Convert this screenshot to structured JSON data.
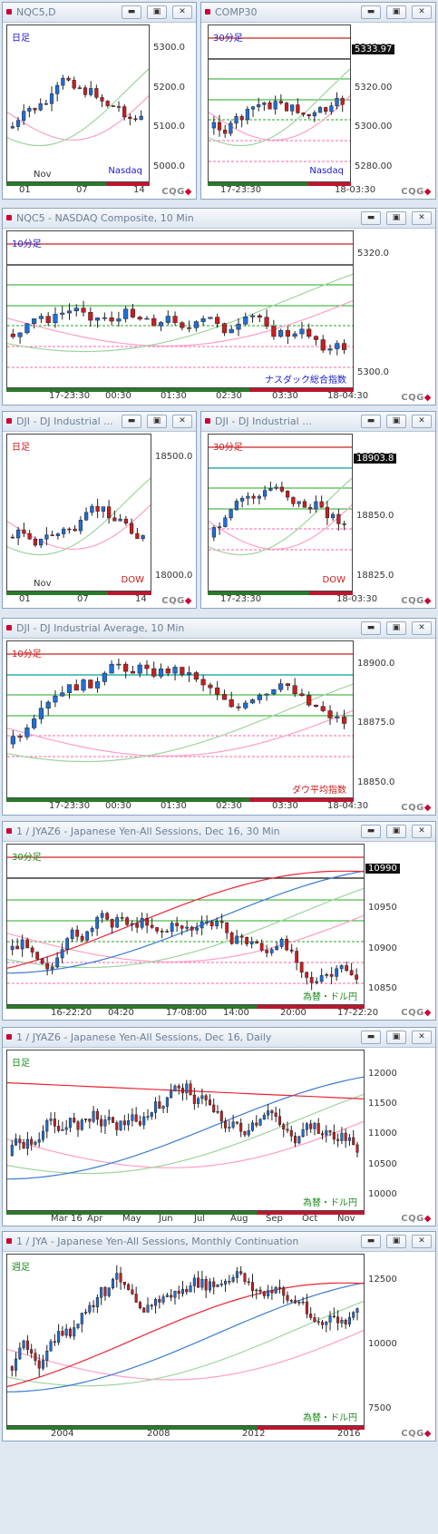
{
  "windows": [
    {
      "id": "w1",
      "title": "NQC5,D",
      "label": "日足",
      "label_color": "#1a1acc",
      "sym": "Nasdaq",
      "sym_color": "#1a1acc",
      "yticks": [
        "5300.0",
        "5200.0",
        "5100.0",
        "5000.0"
      ],
      "xticks": [
        "01",
        "07",
        "14"
      ],
      "xsub": "Nov",
      "last": ""
    },
    {
      "id": "w2",
      "title": "COMP30",
      "label": "30分足",
      "label_color": "#1a1acc",
      "sym": "Nasdaq",
      "sym_color": "#1a1acc",
      "yticks": [
        "5340.00",
        "5320.00",
        "5300.00",
        "5280.00"
      ],
      "xticks": [
        "17-23:30",
        "18-03:30"
      ],
      "xsub": "",
      "last": "5333.97"
    },
    {
      "id": "w3",
      "title": "NQC5 - NASDAQ Composite, 10 Min",
      "label": "10分足",
      "label_color": "#1a1acc",
      "sym": "ナスダック総合指数",
      "sym_color": "#1a1acc",
      "yticks": [
        "5320.0",
        "5300.0"
      ],
      "xticks": [
        "17-23:30",
        "00:30",
        "01:30",
        "02:30",
        "03:30",
        "18-04:30"
      ],
      "xsub": "",
      "last": ""
    },
    {
      "id": "w4",
      "title": "DJI - DJ Industrial ...",
      "label": "日足",
      "label_color": "#cc1a1a",
      "sym": "DOW",
      "sym_color": "#cc1a1a",
      "yticks": [
        "18500.0",
        "18000.0"
      ],
      "xticks": [
        "01",
        "07",
        "14"
      ],
      "xsub": "Nov",
      "last": ""
    },
    {
      "id": "w5",
      "title": "DJI - DJ Industrial ...",
      "label": "30分足",
      "label_color": "#cc1a1a",
      "sym": "DOW",
      "sym_color": "#cc1a1a",
      "yticks": [
        "18875.0",
        "18850.0",
        "18825.0"
      ],
      "xticks": [
        "17-23:30",
        "18-03:30"
      ],
      "xsub": "",
      "last": "18903.8"
    },
    {
      "id": "w6",
      "title": "DJI - DJ Industrial Average, 10 Min",
      "label": "10分足",
      "label_color": "#cc1a1a",
      "sym": "ダウ平均指数",
      "sym_color": "#cc1a1a",
      "yticks": [
        "18900.0",
        "18875.0",
        "18850.0"
      ],
      "xticks": [
        "17-23:30",
        "00:30",
        "01:30",
        "02:30",
        "03:30",
        "18-04:30"
      ],
      "xsub": "",
      "last": ""
    },
    {
      "id": "w7",
      "title": "1 / JYAZ6 - Japanese Yen-All Sessions, Dec 16, 30 Min",
      "label": "30分足",
      "label_color": "#1a8a1a",
      "sym": "為替・ドル円",
      "sym_color": "#1a8a1a",
      "yticks": [
        "11000",
        "10950",
        "10900",
        "10850"
      ],
      "xticks": [
        "16-22:20",
        "04:20",
        "17-08:00",
        "14:00",
        "20:00",
        "17-22:20"
      ],
      "xsub": "",
      "last": "10990"
    },
    {
      "id": "w8",
      "title": "1 / JYAZ6 - Japanese Yen-All Sessions, Dec 16, Daily",
      "label": "日足",
      "label_color": "#1a8a1a",
      "sym": "為替・ドル円",
      "sym_color": "#1a8a1a",
      "yticks": [
        "12000",
        "11500",
        "11000",
        "10500",
        "10000"
      ],
      "xticks": [
        "Mar 16",
        "Apr",
        "May",
        "Jun",
        "Jul",
        "Aug",
        "Sep",
        "Oct",
        "Nov"
      ],
      "xsub": "",
      "last": ""
    },
    {
      "id": "w9",
      "title": "1 / JYA - Japanese Yen-All Sessions, Monthly Continuation",
      "label": "週足",
      "label_color": "#1a8a1a",
      "sym": "為替・ドル円",
      "sym_color": "#1a8a1a",
      "yticks": [
        "12500",
        "10000",
        "7500"
      ],
      "xticks": [
        "2004",
        "2008",
        "2012",
        "2016"
      ],
      "xsub": "",
      "last": ""
    }
  ],
  "buttons": {
    "min": "▬",
    "restore": "▣",
    "close": "✕"
  },
  "brand": {
    "text": "CQG",
    "mark": "◆"
  }
}
